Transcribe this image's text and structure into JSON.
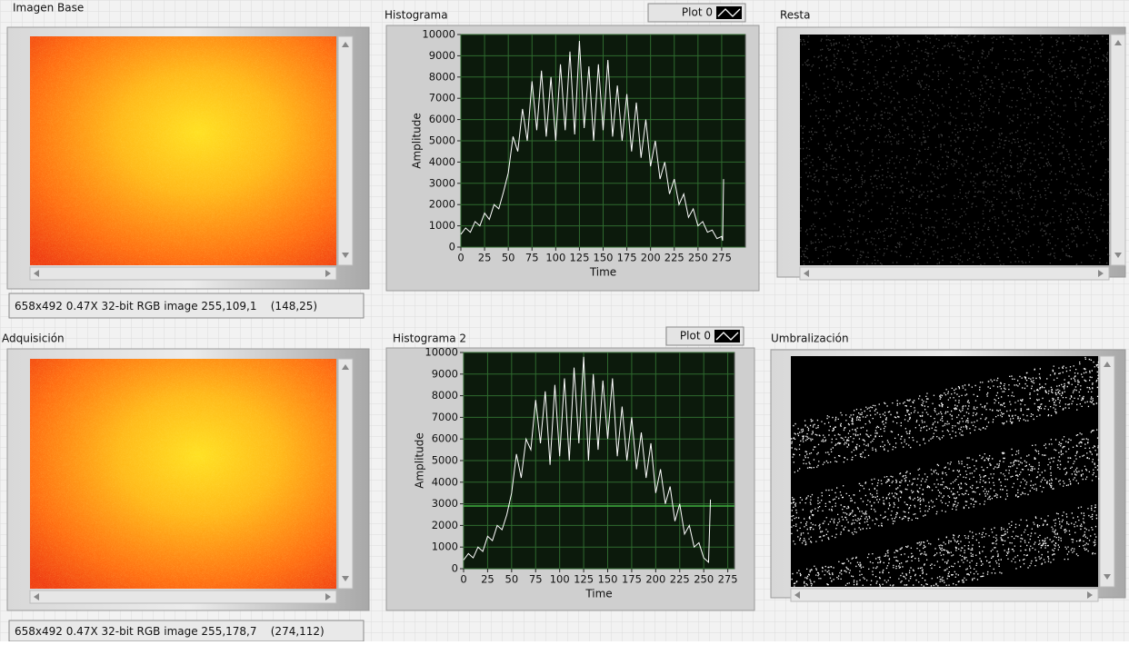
{
  "displays": [
    {
      "label": "Imagen Base",
      "info": "658x492 0.47X 32-bit RGB image 255,109,1    (148,25)"
    },
    {
      "label": "Adquisición",
      "info": "658x492 0.47X 32-bit RGB image 255,178,7    (274,112)"
    },
    {
      "label": "Resta"
    },
    {
      "label": "Umbralización"
    }
  ],
  "chart_data": [
    {
      "type": "line",
      "title": "Histograma",
      "x_label": "Time",
      "y_label": "Amplitude",
      "xlim": [
        0,
        300
      ],
      "ylim": [
        0,
        10000
      ],
      "xticks": [
        0,
        25,
        50,
        75,
        100,
        125,
        150,
        175,
        200,
        225,
        250,
        275
      ],
      "yticks": [
        0,
        1000,
        2000,
        3000,
        4000,
        5000,
        6000,
        7000,
        8000,
        9000,
        10000
      ],
      "grid": true,
      "x": [
        0,
        5,
        10,
        15,
        20,
        25,
        30,
        35,
        40,
        45,
        50,
        55,
        60,
        65,
        70,
        75,
        80,
        85,
        90,
        95,
        100,
        105,
        110,
        115,
        120,
        125,
        130,
        135,
        140,
        145,
        150,
        155,
        160,
        165,
        170,
        175,
        180,
        185,
        190,
        195,
        200,
        205,
        210,
        215,
        220,
        225,
        230,
        235,
        240,
        245,
        250,
        255,
        260,
        265,
        270,
        275,
        276,
        277
      ],
      "series": [
        {
          "name": "Plot 0",
          "color": "#ffffff",
          "values": [
            600,
            900,
            700,
            1200,
            1000,
            1600,
            1300,
            2000,
            1800,
            2600,
            3500,
            5200,
            4500,
            6500,
            5000,
            7800,
            5500,
            8300,
            5200,
            8000,
            5000,
            8600,
            5500,
            9200,
            5300,
            9700,
            5600,
            8500,
            5000,
            8600,
            5500,
            8800,
            5200,
            7600,
            5000,
            7200,
            4500,
            6800,
            4200,
            6000,
            3800,
            5000,
            3200,
            4000,
            2500,
            3200,
            2000,
            2500,
            1400,
            1800,
            1000,
            1200,
            700,
            800,
            400,
            500,
            300,
            3200
          ]
        }
      ]
    },
    {
      "type": "line",
      "title": "Histograma 2",
      "x_label": "Time",
      "y_label": "Amplitude",
      "xlim": [
        0,
        282
      ],
      "ylim": [
        0,
        10000
      ],
      "xticks": [
        0,
        25,
        50,
        75,
        100,
        125,
        150,
        175,
        200,
        225,
        250,
        275
      ],
      "yticks": [
        0,
        1000,
        2000,
        3000,
        4000,
        5000,
        6000,
        7000,
        8000,
        9000,
        10000
      ],
      "grid": true,
      "hline": 2900,
      "x": [
        0,
        5,
        10,
        15,
        20,
        25,
        30,
        35,
        40,
        45,
        50,
        55,
        60,
        65,
        70,
        75,
        80,
        85,
        90,
        95,
        100,
        105,
        110,
        115,
        120,
        125,
        130,
        135,
        140,
        145,
        150,
        155,
        160,
        165,
        170,
        175,
        180,
        185,
        190,
        195,
        200,
        205,
        210,
        215,
        220,
        225,
        230,
        235,
        240,
        245,
        250,
        255,
        257
      ],
      "series": [
        {
          "name": "Plot 0",
          "color": "#ffffff",
          "values": [
            400,
            700,
            500,
            1000,
            800,
            1500,
            1300,
            2000,
            1800,
            2500,
            3500,
            5300,
            4200,
            6000,
            5500,
            7800,
            5800,
            8200,
            4800,
            8500,
            5200,
            8800,
            5000,
            9300,
            5800,
            9800,
            5000,
            9000,
            5500,
            8700,
            6000,
            8800,
            5200,
            7500,
            5000,
            7000,
            4600,
            6300,
            4200,
            5800,
            3500,
            4600,
            3000,
            3800,
            2200,
            3000,
            1600,
            2000,
            1000,
            1200,
            500,
            300,
            3200
          ]
        }
      ]
    }
  ]
}
